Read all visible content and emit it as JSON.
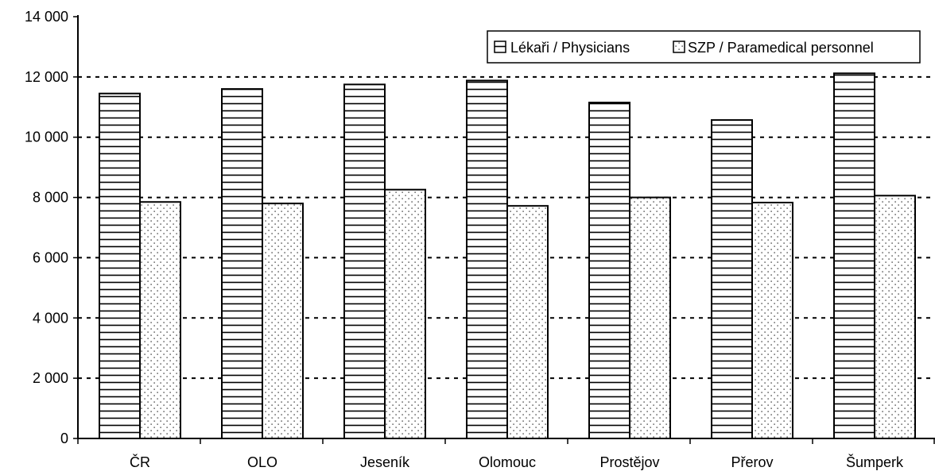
{
  "chart_data": {
    "type": "bar",
    "title": "",
    "xlabel": "",
    "ylabel": "",
    "categories": [
      "ČR",
      "OLO",
      "Jeseník",
      "Olomouc",
      "Prostějov",
      "Přerov",
      "Šumperk"
    ],
    "series": [
      {
        "name": "Lékaři / Physicians",
        "pattern": "horizontal-stripes",
        "values": [
          11450,
          11600,
          11750,
          11880,
          11150,
          10570,
          12120
        ]
      },
      {
        "name": "SZP / Paramedical personnel",
        "pattern": "dots",
        "values": [
          7850,
          7800,
          8260,
          7720,
          8000,
          7830,
          8060
        ]
      }
    ],
    "ylim": [
      0,
      14000
    ],
    "yticks": [
      0,
      2000,
      4000,
      6000,
      8000,
      10000,
      12000,
      14000
    ],
    "ytick_labels": [
      "0",
      "2 000",
      "4 000",
      "6 000",
      "8 000",
      "10 000",
      "12 000",
      "14 000"
    ],
    "grid": "dashed horizontal",
    "legend": "top-right"
  }
}
